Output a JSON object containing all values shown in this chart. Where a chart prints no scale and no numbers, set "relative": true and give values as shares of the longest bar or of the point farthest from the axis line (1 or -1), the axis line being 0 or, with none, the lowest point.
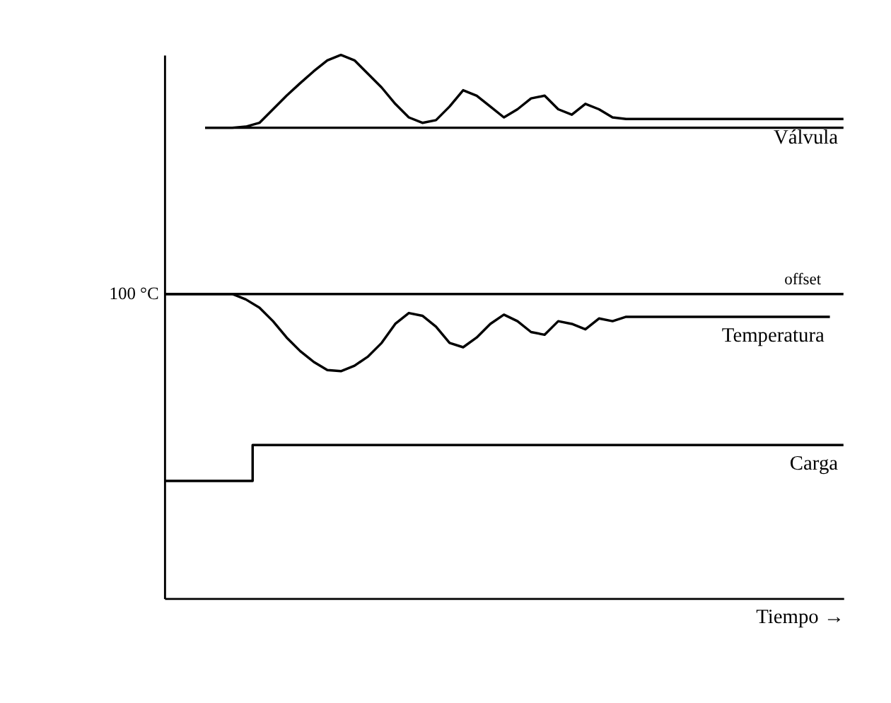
{
  "chart_data": {
    "type": "line",
    "relative": true,
    "xlabel": "Tiempo →",
    "categories": [
      null,
      null,
      null,
      null,
      null,
      null,
      null,
      null,
      null,
      null,
      null,
      null,
      null,
      null,
      null,
      null,
      null,
      null,
      null,
      null,
      null,
      null,
      null,
      null,
      null,
      null,
      null,
      null,
      null,
      null,
      null,
      null,
      null,
      null,
      null,
      null,
      null,
      null,
      null,
      null,
      null,
      null,
      null,
      null,
      null,
      null,
      null,
      null,
      null,
      null,
      null
    ],
    "series": [
      {
        "color": "#000000",
        "values": [
          null,
          null,
          null,
          0.866,
          0.866,
          0.866,
          0.866,
          0.866,
          0.866,
          0.866,
          0.866,
          0.866,
          0.866,
          0.866,
          0.866,
          0.866,
          0.866,
          0.866,
          0.866,
          0.866,
          0.866,
          0.866,
          0.866,
          0.866,
          0.866,
          0.866,
          0.866,
          0.866,
          0.866,
          0.866,
          0.866,
          0.866,
          0.866,
          0.866,
          0.866,
          0.866,
          0.866,
          0.866,
          0.866,
          0.866,
          0.866,
          0.866,
          0.866,
          0.866,
          0.866,
          0.866,
          0.866,
          0.866,
          0.866,
          0.866,
          0.866
        ]
      },
      {
        "name": "Válvula",
        "color": "#000000",
        "values": [
          null,
          null,
          null,
          0.866,
          0.866,
          0.866,
          0.868,
          0.875,
          0.9,
          0.925,
          0.948,
          0.97,
          0.99,
          1.0,
          0.99,
          0.965,
          0.94,
          0.91,
          0.885,
          0.875,
          0.88,
          0.905,
          0.935,
          0.925,
          0.905,
          0.885,
          0.9,
          0.92,
          0.925,
          0.9,
          0.89,
          0.91,
          0.9,
          0.885,
          0.882,
          0.882,
          0.882,
          0.882,
          0.882,
          0.882,
          0.882,
          0.882,
          0.882,
          0.882,
          0.882,
          0.882,
          0.882,
          0.882,
          0.882,
          0.882,
          0.882
        ]
      },
      {
        "color": "#000000",
        "values": [
          0.56,
          0.56,
          0.56,
          0.56,
          0.56,
          0.56,
          0.56,
          0.56,
          0.56,
          0.56,
          0.56,
          0.56,
          0.56,
          0.56,
          0.56,
          0.56,
          0.56,
          0.56,
          0.56,
          0.56,
          0.56,
          0.56,
          0.56,
          0.56,
          0.56,
          0.56,
          0.56,
          0.56,
          0.56,
          0.56,
          0.56,
          0.56,
          0.56,
          0.56,
          0.56,
          0.56,
          0.56,
          0.56,
          0.56,
          0.56,
          0.56,
          0.56,
          0.56,
          0.56,
          0.56,
          0.56,
          0.56,
          0.56,
          0.56,
          0.56,
          0.56
        ]
      },
      {
        "name": "Temperatura",
        "color": "#000000",
        "values": [
          0.56,
          0.56,
          0.56,
          0.56,
          0.56,
          0.56,
          0.55,
          0.535,
          0.51,
          0.48,
          0.455,
          0.435,
          0.42,
          0.418,
          0.428,
          0.445,
          0.47,
          0.505,
          0.525,
          0.52,
          0.5,
          0.47,
          0.462,
          0.48,
          0.505,
          0.522,
          0.51,
          0.49,
          0.485,
          0.51,
          0.505,
          0.495,
          0.515,
          0.51,
          0.518,
          0.518,
          0.518,
          0.518,
          0.518,
          0.518,
          0.518,
          0.518,
          0.518,
          0.518,
          0.518,
          0.518,
          0.518,
          0.518,
          0.518,
          0.518,
          null
        ]
      },
      {
        "name": "Carga",
        "type": "step",
        "color": "#000000",
        "values": [
          0.216,
          0.216,
          0.216,
          0.216,
          0.216,
          0.216,
          0.216,
          0.282,
          0.282,
          0.282,
          0.282,
          0.282,
          0.282,
          0.282,
          0.282,
          0.282,
          0.282,
          0.282,
          0.282,
          0.282,
          0.282,
          0.282,
          0.282,
          0.282,
          0.282,
          0.282,
          0.282,
          0.282,
          0.282,
          0.282,
          0.282,
          0.282,
          0.282,
          0.282,
          0.282,
          0.282,
          0.282,
          0.282,
          0.282,
          0.282,
          0.282,
          0.282,
          0.282,
          0.282,
          0.282,
          0.282,
          0.282,
          0.282,
          0.282,
          0.282,
          0.282
        ]
      }
    ],
    "annotations": [
      "100 °C",
      "offset"
    ]
  }
}
